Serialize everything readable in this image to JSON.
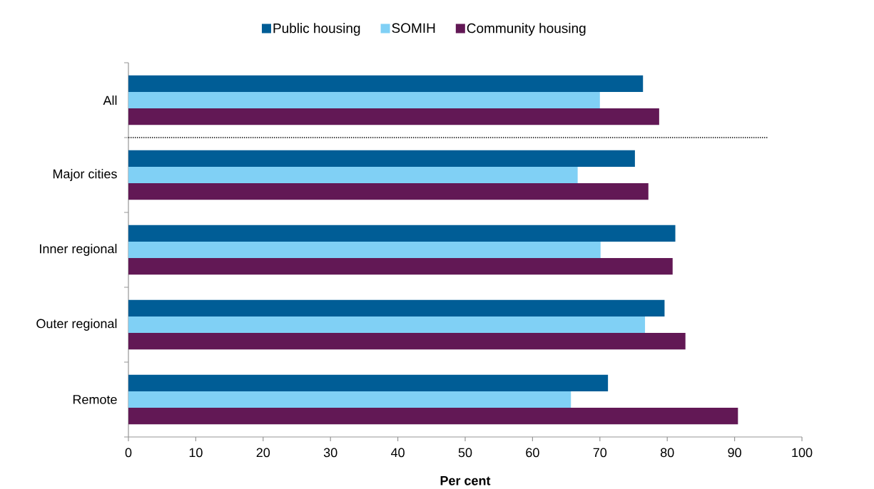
{
  "chart_data": {
    "type": "bar",
    "orientation": "horizontal",
    "categories": [
      "All",
      "Major cities",
      "Inner regional",
      "Outer regional",
      "Remote"
    ],
    "series": [
      {
        "name": "Public housing",
        "color": "#005D96",
        "values": [
          76.4,
          75.2,
          81.2,
          79.6,
          71.2
        ]
      },
      {
        "name": "SOMIH",
        "color": "#80D0F5",
        "values": [
          70.0,
          66.7,
          70.1,
          76.7,
          65.7
        ]
      },
      {
        "name": "Community housing",
        "color": "#621855",
        "values": [
          78.8,
          77.2,
          80.8,
          82.7,
          90.5
        ]
      }
    ],
    "xlim": [
      0,
      100
    ],
    "xticks": [
      0,
      10,
      20,
      30,
      40,
      50,
      60,
      70,
      80,
      90,
      100
    ],
    "xlabel": "Per cent",
    "legend": "top"
  }
}
